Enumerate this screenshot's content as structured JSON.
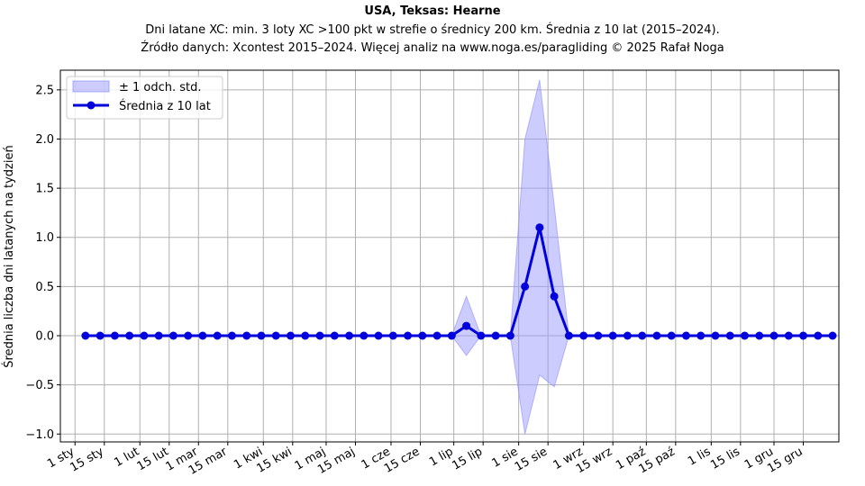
{
  "chart_data": {
    "type": "line",
    "title": "USA, Teksas: Hearne",
    "subtitle_lines": [
      "Dni latane XC: min. 3 loty XC >100 pkt w strefie o średnicy 200 km. Średnia z 10 lat (2015–2024).",
      "Źródło danych: Xcontest 2015–2024. Więcej analiz na www.noga.es/paragliding © 2025 Rafał Noga"
    ],
    "xlabel": "",
    "ylabel": "Średnia liczba dni latanych na tydzień",
    "ylim": [
      -1.08,
      2.7
    ],
    "yticks": [
      -1.0,
      -0.5,
      0.0,
      0.5,
      1.0,
      1.5,
      2.0,
      2.5
    ],
    "ytick_labels": [
      "−1.0",
      "−0.5",
      "0.0",
      "0.5",
      "1.0",
      "1.5",
      "2.0",
      "2.5"
    ],
    "xlim_days": [
      -7,
      365
    ],
    "xticks_days": [
      0,
      14,
      31,
      45,
      59,
      73,
      90,
      104,
      120,
      134,
      151,
      165,
      181,
      195,
      212,
      226,
      243,
      257,
      273,
      287,
      304,
      318,
      334,
      348
    ],
    "xtick_labels": [
      "1 sty",
      "15 sty",
      "1 lut",
      "15 lut",
      "1 mar",
      "15 mar",
      "1 kwi",
      "15 kwi",
      "1 maj",
      "15 maj",
      "1 cze",
      "15 cze",
      "1 lip",
      "15 lip",
      "1 sie",
      "15 sie",
      "1 wrz",
      "15 wrz",
      "1 paź",
      "15 paź",
      "1 lis",
      "15 lis",
      "1 gru",
      "15 gru"
    ],
    "week_days": [
      5,
      12,
      19,
      26,
      33,
      40,
      47,
      54,
      61,
      68,
      75,
      82,
      89,
      96,
      103,
      110,
      117,
      124,
      131,
      138,
      145,
      152,
      159,
      166,
      173,
      180,
      187,
      194,
      201,
      208,
      215,
      222,
      229,
      236,
      243,
      250,
      257,
      264,
      271,
      278,
      285,
      292,
      299,
      306,
      313,
      320,
      327,
      334,
      341,
      348,
      355,
      362
    ],
    "series": [
      {
        "name": "Średnia z 10 lat",
        "color": "#0000dd",
        "values": [
          0,
          0,
          0,
          0,
          0,
          0,
          0,
          0,
          0,
          0,
          0,
          0,
          0,
          0,
          0,
          0,
          0,
          0,
          0,
          0,
          0,
          0,
          0,
          0,
          0,
          0,
          0.1,
          0,
          0,
          0,
          0.5,
          1.1,
          0.4,
          0,
          0,
          0,
          0,
          0,
          0,
          0,
          0,
          0,
          0,
          0,
          0,
          0,
          0,
          0,
          0,
          0,
          0,
          0
        ]
      }
    ],
    "band": {
      "name": "± 1 odch. std.",
      "color": "#9999ff",
      "lower": [
        0,
        0,
        0,
        0,
        0,
        0,
        0,
        0,
        0,
        0,
        0,
        0,
        0,
        0,
        0,
        0,
        0,
        0,
        0,
        0,
        0,
        0,
        0,
        0,
        0,
        0,
        -0.2,
        0,
        0,
        0,
        -1.0,
        -0.4,
        -0.52,
        0,
        0,
        0,
        0,
        0,
        0,
        0,
        0,
        0,
        0,
        0,
        0,
        0,
        0,
        0,
        0,
        0,
        0,
        0
      ],
      "upper": [
        0,
        0,
        0,
        0,
        0,
        0,
        0,
        0,
        0,
        0,
        0,
        0,
        0,
        0,
        0,
        0,
        0,
        0,
        0,
        0,
        0,
        0,
        0,
        0,
        0,
        0,
        0.4,
        0,
        0,
        0,
        2.0,
        2.6,
        1.32,
        0,
        0,
        0,
        0,
        0,
        0,
        0,
        0,
        0,
        0,
        0,
        0,
        0,
        0,
        0,
        0,
        0,
        0,
        0
      ]
    },
    "grid": true,
    "legend_position": "upper-left"
  }
}
